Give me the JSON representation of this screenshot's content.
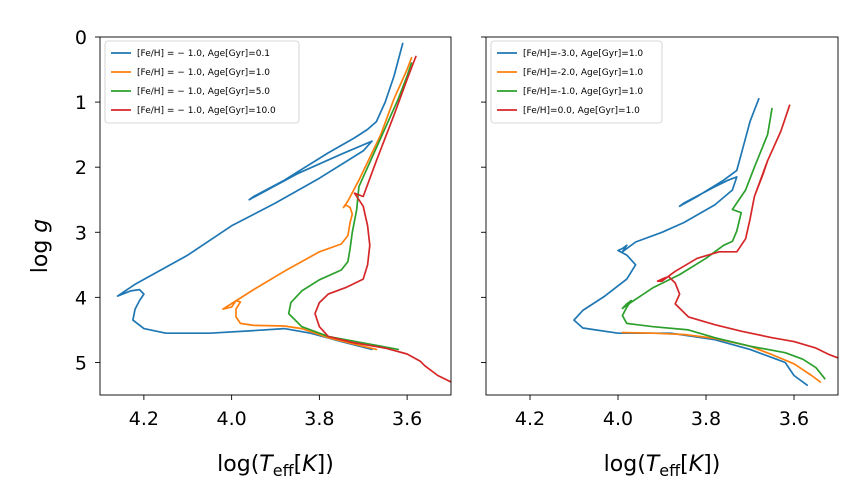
{
  "chart_data": [
    {
      "type": "line",
      "panel": "left",
      "xlabel": "log(T_eff[K])",
      "ylabel": "log g",
      "xlim": [
        4.3,
        3.5
      ],
      "ylim": [
        5.5,
        0
      ],
      "x_inverted": true,
      "y_inverted": true,
      "xticks": [
        "4.2",
        "4.0",
        "3.8",
        "3.6"
      ],
      "yticks": [
        "0",
        "1",
        "2",
        "3",
        "4",
        "5"
      ],
      "grid": false,
      "legend_position": "top-left",
      "series": [
        {
          "name": "[Fe/H] = − 1.0, Age[Gyr]=0.1",
          "color": "#1f77b4",
          "points": [
            [
              3.68,
              4.8
            ],
            [
              3.75,
              4.68
            ],
            [
              3.82,
              4.55
            ],
            [
              3.88,
              4.48
            ],
            [
              3.95,
              4.51
            ],
            [
              4.05,
              4.55
            ],
            [
              4.15,
              4.55
            ],
            [
              4.2,
              4.48
            ],
            [
              4.225,
              4.35
            ],
            [
              4.22,
              4.18
            ],
            [
              4.21,
              4.05
            ],
            [
              4.2,
              3.95
            ],
            [
              4.21,
              3.88
            ],
            [
              4.23,
              3.9
            ],
            [
              4.26,
              3.98
            ],
            [
              4.22,
              3.8
            ],
            [
              4.1,
              3.35
            ],
            [
              4.0,
              2.9
            ],
            [
              3.9,
              2.55
            ],
            [
              3.8,
              2.17
            ],
            [
              3.7,
              1.75
            ],
            [
              3.68,
              1.6
            ],
            [
              3.75,
              1.8
            ],
            [
              3.85,
              2.1
            ],
            [
              3.96,
              2.5
            ],
            [
              3.95,
              2.45
            ],
            [
              3.88,
              2.2
            ],
            [
              3.78,
              1.78
            ],
            [
              3.72,
              1.55
            ],
            [
              3.69,
              1.42
            ],
            [
              3.67,
              1.3
            ],
            [
              3.65,
              1.0
            ],
            [
              3.63,
              0.6
            ],
            [
              3.61,
              0.1
            ]
          ]
        },
        {
          "name": "[Fe/H] = − 1.0, Age[Gyr]=1.0",
          "color": "#ff7f0e",
          "points": [
            [
              3.67,
              4.8
            ],
            [
              3.72,
              4.72
            ],
            [
              3.78,
              4.62
            ],
            [
              3.84,
              4.48
            ],
            [
              3.88,
              4.44
            ],
            [
              3.95,
              4.43
            ],
            [
              3.98,
              4.4
            ],
            [
              3.99,
              4.3
            ],
            [
              3.99,
              4.18
            ],
            [
              3.98,
              4.07
            ],
            [
              3.99,
              4.05
            ],
            [
              4.0,
              4.15
            ],
            [
              4.02,
              4.18
            ],
            [
              3.95,
              3.88
            ],
            [
              3.88,
              3.6
            ],
            [
              3.8,
              3.3
            ],
            [
              3.75,
              3.18
            ],
            [
              3.735,
              3.05
            ],
            [
              3.73,
              2.85
            ],
            [
              3.725,
              2.72
            ],
            [
              3.73,
              2.62
            ],
            [
              3.74,
              2.58
            ],
            [
              3.745,
              2.62
            ],
            [
              3.735,
              2.52
            ],
            [
              3.71,
              2.2
            ],
            [
              3.66,
              1.5
            ],
            [
              3.63,
              0.95
            ],
            [
              3.6,
              0.5
            ],
            [
              3.59,
              0.32
            ]
          ]
        },
        {
          "name": "[Fe/H] = − 1.0, Age[Gyr]=5.0",
          "color": "#2ca02c",
          "points": [
            [
              3.62,
              4.8
            ],
            [
              3.7,
              4.7
            ],
            [
              3.78,
              4.6
            ],
            [
              3.84,
              4.45
            ],
            [
              3.87,
              4.25
            ],
            [
              3.865,
              4.08
            ],
            [
              3.84,
              3.9
            ],
            [
              3.8,
              3.73
            ],
            [
              3.75,
              3.58
            ],
            [
              3.735,
              3.45
            ],
            [
              3.73,
              3.25
            ],
            [
              3.725,
              3.0
            ],
            [
              3.715,
              2.65
            ],
            [
              3.71,
              2.3
            ],
            [
              3.66,
              1.55
            ],
            [
              3.62,
              0.95
            ],
            [
              3.6,
              0.6
            ],
            [
              3.59,
              0.4
            ]
          ]
        },
        {
          "name": "[Fe/H] = − 1.0, Age[Gyr]=10.0",
          "color": "#d62728",
          "points": [
            [
              3.5,
              5.3
            ],
            [
              3.53,
              5.2
            ],
            [
              3.56,
              5.05
            ],
            [
              3.57,
              4.98
            ],
            [
              3.6,
              4.87
            ],
            [
              3.65,
              4.78
            ],
            [
              3.72,
              4.7
            ],
            [
              3.78,
              4.6
            ],
            [
              3.8,
              4.45
            ],
            [
              3.81,
              4.25
            ],
            [
              3.8,
              4.08
            ],
            [
              3.78,
              3.95
            ],
            [
              3.74,
              3.85
            ],
            [
              3.7,
              3.72
            ],
            [
              3.69,
              3.5
            ],
            [
              3.685,
              3.2
            ],
            [
              3.69,
              2.9
            ],
            [
              3.7,
              2.6
            ],
            [
              3.72,
              2.4
            ],
            [
              3.7,
              2.45
            ],
            [
              3.67,
              1.9
            ],
            [
              3.63,
              1.2
            ],
            [
              3.6,
              0.65
            ],
            [
              3.58,
              0.3
            ]
          ]
        }
      ]
    },
    {
      "type": "line",
      "panel": "right",
      "xlabel": "log(T_eff[K])",
      "ylabel": "",
      "xlim": [
        4.3,
        3.5
      ],
      "ylim": [
        5.5,
        0
      ],
      "x_inverted": true,
      "y_inverted": true,
      "xticks": [
        "4.2",
        "4.0",
        "3.8",
        "3.6"
      ],
      "yticks": [],
      "grid": false,
      "legend_position": "top-left",
      "series": [
        {
          "name": "[Fe/H]=-3.0, Age[Gyr]=1.0",
          "color": "#1f77b4",
          "points": [
            [
              3.57,
              5.35
            ],
            [
              3.6,
              5.2
            ],
            [
              3.62,
              5.0
            ],
            [
              3.64,
              4.95
            ],
            [
              3.7,
              4.8
            ],
            [
              3.78,
              4.65
            ],
            [
              3.88,
              4.55
            ],
            [
              4.0,
              4.55
            ],
            [
              4.08,
              4.47
            ],
            [
              4.1,
              4.35
            ],
            [
              4.08,
              4.2
            ],
            [
              4.03,
              3.98
            ],
            [
              3.98,
              3.72
            ],
            [
              3.96,
              3.5
            ],
            [
              3.98,
              3.35
            ],
            [
              4.0,
              3.28
            ],
            [
              3.99,
              3.25
            ],
            [
              3.98,
              3.2
            ],
            [
              3.99,
              3.3
            ],
            [
              3.96,
              3.15
            ],
            [
              3.9,
              3.0
            ],
            [
              3.85,
              2.85
            ],
            [
              3.78,
              2.58
            ],
            [
              3.74,
              2.35
            ],
            [
              3.73,
              2.15
            ],
            [
              3.75,
              2.2
            ],
            [
              3.78,
              2.3
            ],
            [
              3.85,
              2.55
            ],
            [
              3.86,
              2.6
            ],
            [
              3.82,
              2.45
            ],
            [
              3.76,
              2.2
            ],
            [
              3.73,
              2.05
            ],
            [
              3.72,
              1.8
            ],
            [
              3.7,
              1.3
            ],
            [
              3.68,
              0.95
            ]
          ]
        },
        {
          "name": "[Fe/H]=-2.0, Age[Gyr]=1.0",
          "color": "#ff7f0e",
          "points": [
            [
              3.54,
              5.3
            ],
            [
              3.56,
              5.2
            ],
            [
              3.6,
              5.02
            ],
            [
              3.65,
              4.88
            ],
            [
              3.7,
              4.75
            ],
            [
              3.78,
              4.63
            ],
            [
              3.85,
              4.57
            ],
            [
              3.92,
              4.55
            ],
            [
              3.99,
              4.54
            ]
          ]
        },
        {
          "name": "[Fe/H]=-1.0, Age[Gyr]=1.0",
          "color": "#2ca02c",
          "points": [
            [
              3.53,
              5.25
            ],
            [
              3.55,
              5.08
            ],
            [
              3.58,
              4.95
            ],
            [
              3.62,
              4.85
            ],
            [
              3.7,
              4.75
            ],
            [
              3.78,
              4.62
            ],
            [
              3.84,
              4.5
            ],
            [
              3.92,
              4.45
            ],
            [
              3.98,
              4.4
            ],
            [
              3.99,
              4.28
            ],
            [
              3.98,
              4.15
            ],
            [
              3.97,
              4.05
            ],
            [
              3.98,
              4.1
            ],
            [
              3.99,
              4.17
            ],
            [
              3.98,
              4.12
            ],
            [
              3.92,
              3.85
            ],
            [
              3.86,
              3.65
            ],
            [
              3.8,
              3.4
            ],
            [
              3.76,
              3.2
            ],
            [
              3.74,
              3.14
            ],
            [
              3.73,
              2.98
            ],
            [
              3.72,
              2.7
            ],
            [
              3.74,
              2.65
            ],
            [
              3.73,
              2.55
            ],
            [
              3.71,
              2.35
            ],
            [
              3.69,
              2.0
            ],
            [
              3.66,
              1.5
            ],
            [
              3.65,
              1.1
            ]
          ]
        },
        {
          "name": "[Fe/H]=0.0, Age[Gyr]=1.0",
          "color": "#d62728",
          "points": [
            [
              3.5,
              4.93
            ],
            [
              3.52,
              4.88
            ],
            [
              3.55,
              4.78
            ],
            [
              3.6,
              4.68
            ],
            [
              3.65,
              4.62
            ],
            [
              3.72,
              4.52
            ],
            [
              3.78,
              4.42
            ],
            [
              3.84,
              4.3
            ],
            [
              3.87,
              4.1
            ],
            [
              3.86,
              3.95
            ],
            [
              3.87,
              3.78
            ],
            [
              3.885,
              3.68
            ],
            [
              3.9,
              3.72
            ],
            [
              3.91,
              3.75
            ],
            [
              3.9,
              3.75
            ],
            [
              3.87,
              3.6
            ],
            [
              3.82,
              3.4
            ],
            [
              3.77,
              3.3
            ],
            [
              3.73,
              3.3
            ],
            [
              3.71,
              3.1
            ],
            [
              3.7,
              2.8
            ],
            [
              3.69,
              2.45
            ],
            [
              3.67,
              2.1
            ],
            [
              3.66,
              1.9
            ],
            [
              3.69,
              2.45
            ],
            [
              3.66,
              1.9
            ],
            [
              3.63,
              1.45
            ],
            [
              3.61,
              1.05
            ]
          ]
        }
      ]
    }
  ]
}
